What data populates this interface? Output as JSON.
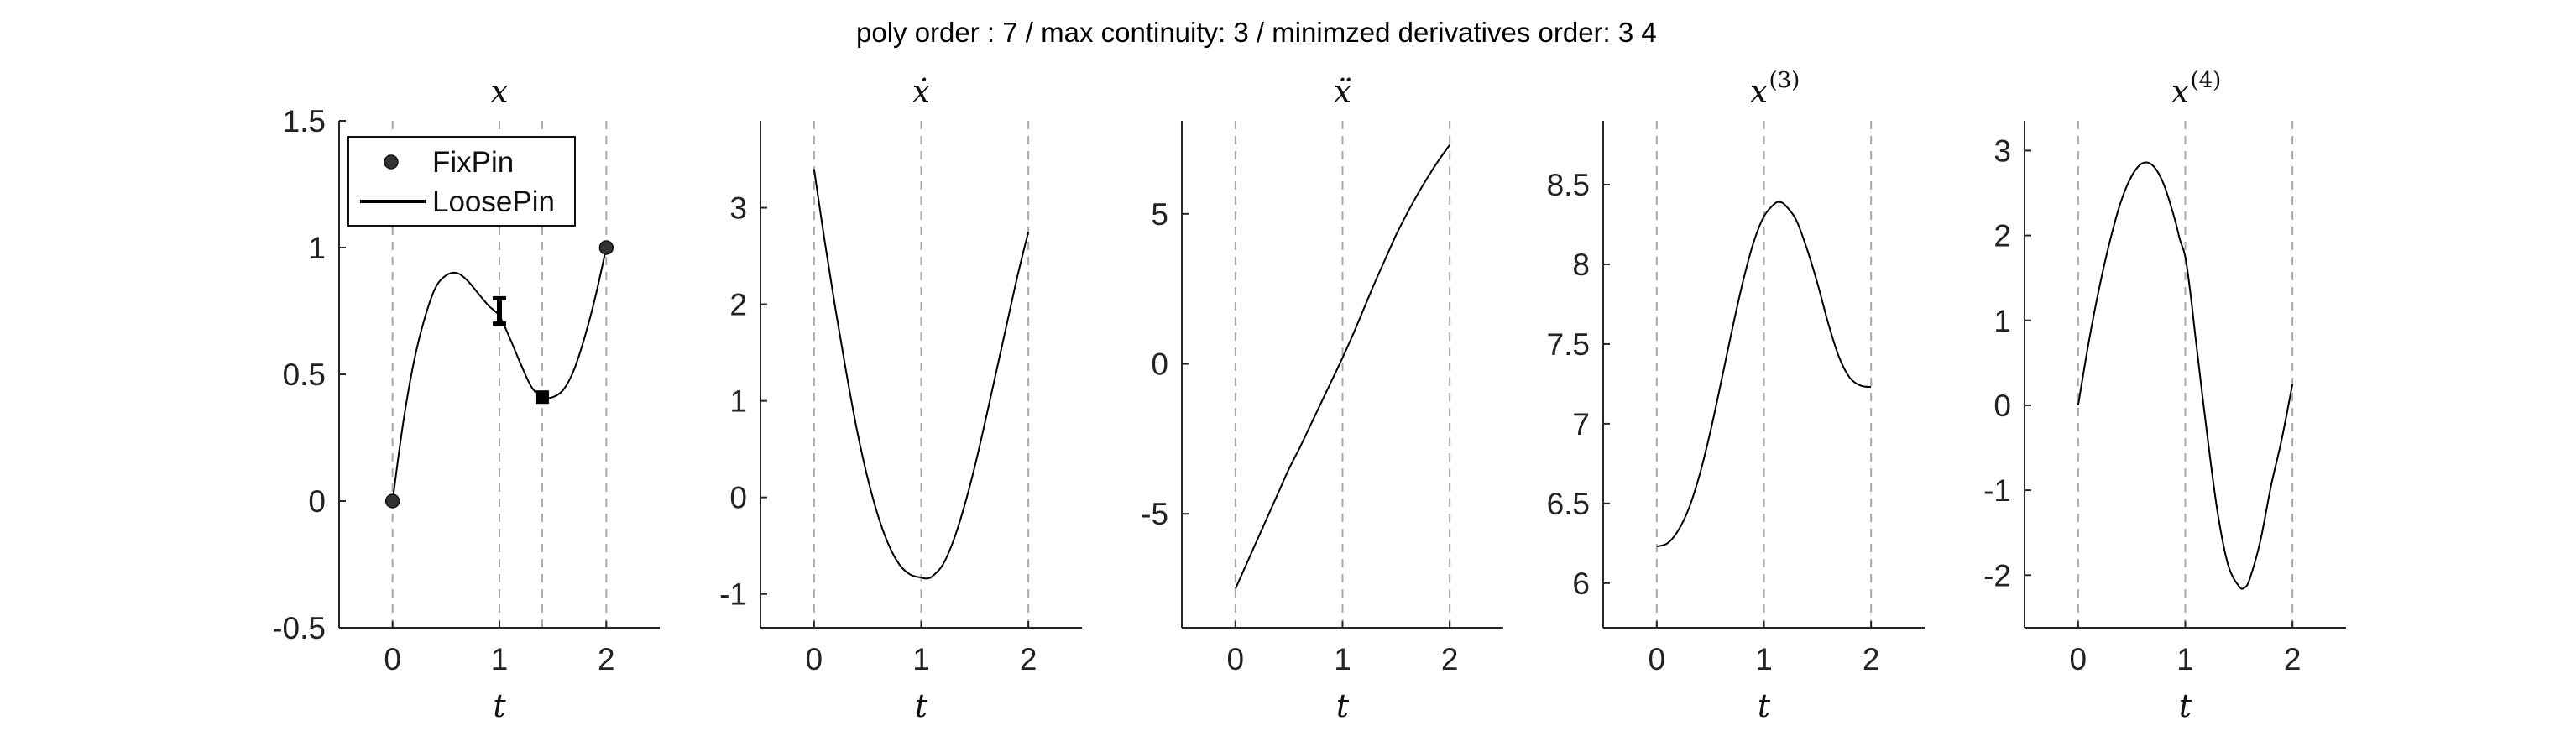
{
  "figure_title": "poly order : 7 / max continuity: 3 / minimzed derivatives order: 3  4",
  "colors": {
    "curve": "#000000",
    "guide": "#a8a8a8",
    "axis": "#262626",
    "marker": "#333333"
  },
  "legend": {
    "placement": "top-left",
    "items": [
      "FixPin",
      "LoosePin"
    ]
  },
  "chart_data": [
    {
      "type": "line",
      "title": "x",
      "xlabel": "t",
      "xlim": [
        -0.5,
        2.5
      ],
      "ylim": [
        -0.5,
        1.5
      ],
      "xticks": [
        "0",
        "1",
        "2"
      ],
      "yticks": [
        "-0.5",
        "0",
        "0.5",
        "1",
        "1.5"
      ],
      "guides_x": [
        0,
        1,
        1.4,
        2
      ],
      "series": [
        {
          "x": [
            0,
            0.1,
            0.2,
            0.3,
            0.4,
            0.5,
            0.6,
            0.7,
            0.8,
            0.9,
            1.0,
            1.1,
            1.2,
            1.3,
            1.4,
            1.5,
            1.6,
            1.7,
            1.8,
            1.9,
            2.0
          ],
          "values": [
            0,
            0.31,
            0.55,
            0.72,
            0.84,
            0.89,
            0.9,
            0.87,
            0.82,
            0.77,
            0.73,
            0.64,
            0.54,
            0.45,
            0.41,
            0.41,
            0.44,
            0.52,
            0.65,
            0.81,
            1.0
          ]
        }
      ],
      "fixpins": [
        {
          "x": 0,
          "y": 0
        },
        {
          "x": 2,
          "y": 1
        }
      ],
      "loosepins": [
        {
          "type": "interval",
          "x": 1,
          "ylow": 0.7,
          "yhigh": 0.8
        },
        {
          "type": "box",
          "x": 1.4,
          "y": 0.41
        }
      ]
    },
    {
      "type": "line",
      "title": "ẋ",
      "xlabel": "t",
      "xlim": [
        -0.5,
        2.5
      ],
      "ylim": [
        -1.35,
        3.9
      ],
      "xticks": [
        "0",
        "1",
        "2"
      ],
      "yticks": [
        "-1",
        "0",
        "1",
        "2",
        "3"
      ],
      "guides_x": [
        0,
        1,
        2
      ],
      "series": [
        {
          "x": [
            0,
            0.1,
            0.2,
            0.3,
            0.4,
            0.5,
            0.6,
            0.7,
            0.8,
            0.9,
            1.0,
            1.05,
            1.1,
            1.2,
            1.3,
            1.4,
            1.5,
            1.6,
            1.7,
            1.8,
            1.9,
            2.0
          ],
          "values": [
            3.4,
            2.65,
            1.95,
            1.3,
            0.7,
            0.2,
            -0.2,
            -0.5,
            -0.7,
            -0.8,
            -0.83,
            -0.84,
            -0.82,
            -0.7,
            -0.45,
            -0.1,
            0.32,
            0.8,
            1.3,
            1.8,
            2.3,
            2.75
          ]
        }
      ]
    },
    {
      "type": "line",
      "title": "ẍ",
      "xlabel": "t",
      "xlim": [
        -0.5,
        2.5
      ],
      "ylim": [
        -8.8,
        8.1
      ],
      "xticks": [
        "0",
        "1",
        "2"
      ],
      "yticks": [
        "-5",
        "0",
        "5"
      ],
      "guides_x": [
        0,
        1,
        2
      ],
      "series": [
        {
          "x": [
            0,
            0.1,
            0.2,
            0.3,
            0.4,
            0.5,
            0.6,
            0.7,
            0.8,
            0.9,
            1.0,
            1.1,
            1.2,
            1.3,
            1.4,
            1.5,
            1.6,
            1.7,
            1.8,
            1.9,
            2.0
          ],
          "values": [
            -7.5,
            -6.7,
            -5.9,
            -5.1,
            -4.3,
            -3.5,
            -2.8,
            -2.05,
            -1.3,
            -0.55,
            0.2,
            1.0,
            1.85,
            2.7,
            3.5,
            4.3,
            5.0,
            5.65,
            6.25,
            6.8,
            7.3
          ]
        }
      ]
    },
    {
      "type": "line",
      "title": "x(3)",
      "xlabel": "t",
      "xlim": [
        -0.5,
        2.5
      ],
      "ylim": [
        5.72,
        8.9
      ],
      "xticks": [
        "0",
        "1",
        "2"
      ],
      "yticks": [
        "6",
        "6.5",
        "7",
        "7.5",
        "8",
        "8.5"
      ],
      "guides_x": [
        0,
        1,
        2
      ],
      "series": [
        {
          "x": [
            0,
            0.1,
            0.2,
            0.3,
            0.4,
            0.5,
            0.6,
            0.7,
            0.8,
            0.9,
            1.0,
            1.1,
            1.15,
            1.2,
            1.3,
            1.4,
            1.5,
            1.6,
            1.7,
            1.8,
            1.9,
            2.0
          ],
          "values": [
            6.23,
            6.25,
            6.33,
            6.47,
            6.68,
            6.95,
            7.26,
            7.58,
            7.88,
            8.13,
            8.3,
            8.38,
            8.39,
            8.37,
            8.28,
            8.1,
            7.88,
            7.63,
            7.42,
            7.29,
            7.24,
            7.23
          ]
        }
      ]
    },
    {
      "type": "line",
      "title": "x(4)",
      "xlabel": "t",
      "xlim": [
        -0.5,
        2.5
      ],
      "ylim": [
        -2.62,
        3.35
      ],
      "xticks": [
        "0",
        "1",
        "2"
      ],
      "yticks": [
        "-2",
        "-1",
        "0",
        "1",
        "2",
        "3"
      ],
      "guides_x": [
        0,
        1,
        2
      ],
      "series": [
        {
          "x": [
            0,
            0.1,
            0.2,
            0.3,
            0.4,
            0.5,
            0.6,
            0.7,
            0.8,
            0.9,
            0.95,
            1.0,
            1.05,
            1.1,
            1.2,
            1.3,
            1.4,
            1.5,
            1.55,
            1.6,
            1.7,
            1.8,
            1.9,
            2.0
          ],
          "values": [
            0,
            0.75,
            1.4,
            1.95,
            2.4,
            2.7,
            2.85,
            2.82,
            2.6,
            2.2,
            1.95,
            1.75,
            1.3,
            0.75,
            -0.3,
            -1.25,
            -1.88,
            -2.13,
            -2.15,
            -2.05,
            -1.6,
            -0.95,
            -0.4,
            0.25
          ]
        }
      ]
    }
  ]
}
